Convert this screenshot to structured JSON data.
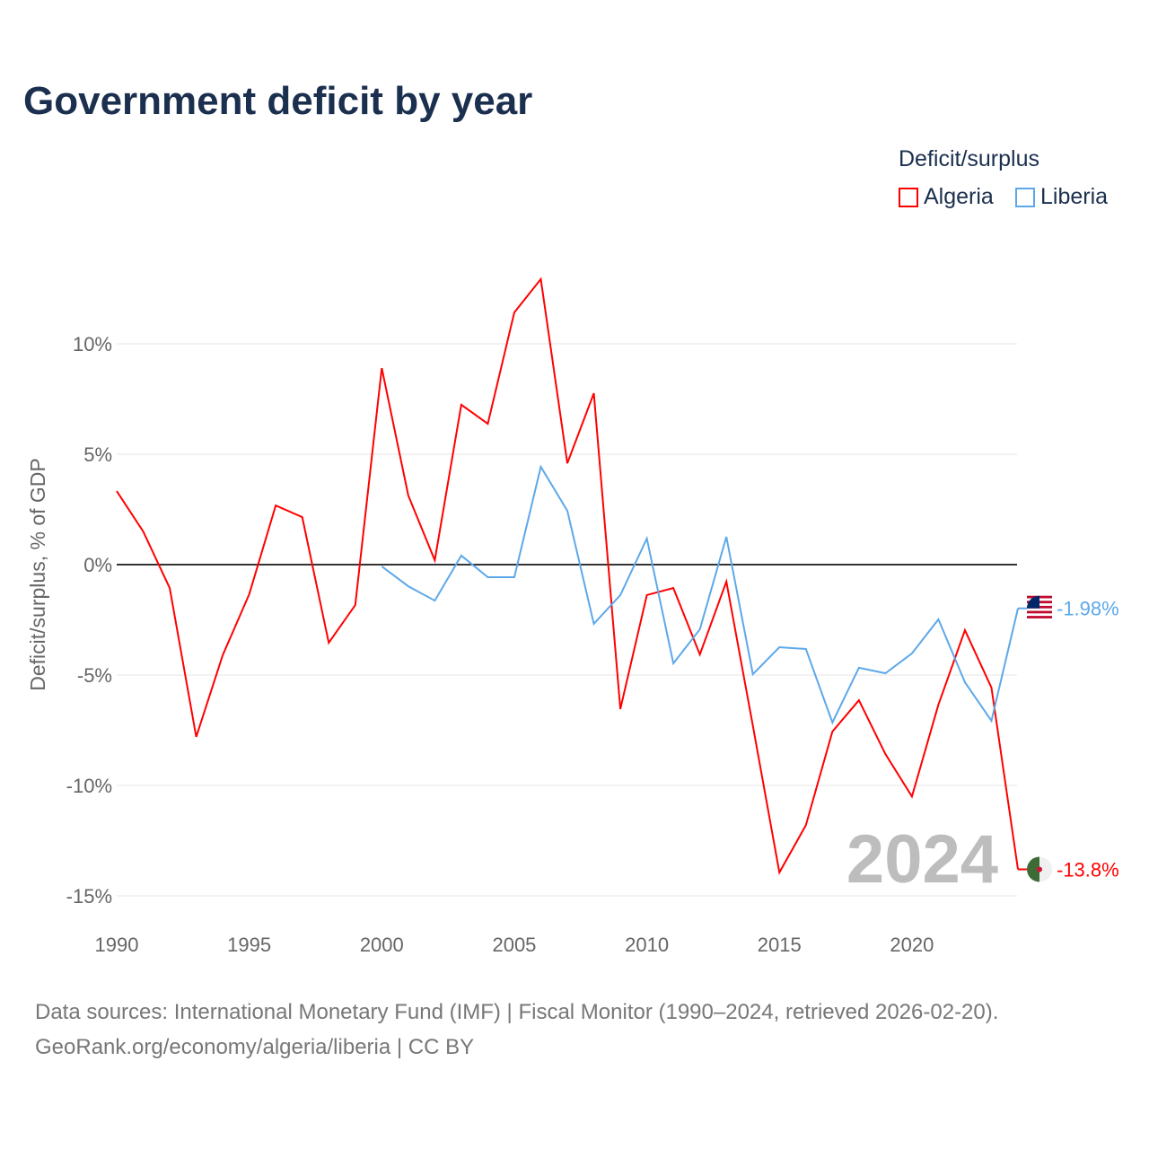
{
  "chart_data": {
    "type": "line",
    "title": "Government deficit by year",
    "ylabel": "Deficit/surplus, % of GDP",
    "xlabel": "",
    "xlim": [
      1990,
      2024
    ],
    "ylim": [
      -15,
      13
    ],
    "x_ticks": [
      1990,
      1995,
      2000,
      2005,
      2010,
      2015,
      2020
    ],
    "y_ticks": [
      10,
      5,
      0,
      -5,
      -10,
      -15
    ],
    "y_tick_labels": [
      "10%",
      "5%",
      "0%",
      "-5%",
      "-10%",
      "-15%"
    ],
    "legend_title": "Deficit/surplus",
    "legend_position": "top-right",
    "watermark_year": "2024",
    "series": [
      {
        "name": "Algeria",
        "color": "#ff0000",
        "end_label": "-13.8%",
        "start_year": 1990,
        "values": [
          3.33,
          1.5,
          -1.06,
          -7.8,
          -4.1,
          -1.34,
          2.68,
          2.15,
          -3.54,
          -1.83,
          8.9,
          3.13,
          0.2,
          7.24,
          6.38,
          11.42,
          12.93,
          4.59,
          7.76,
          -6.54,
          -1.38,
          -1.06,
          -4.07,
          -0.77,
          -7.3,
          -13.94,
          -11.8,
          -7.56,
          -6.14,
          -8.58,
          -10.5,
          -6.34,
          -2.97,
          -5.57,
          -13.8
        ]
      },
      {
        "name": "Liberia",
        "color": "#5da8ea",
        "end_label": "-1.98%",
        "start_year": 2000,
        "values": [
          -0.08,
          -0.98,
          -1.63,
          0.41,
          -0.57,
          -0.57,
          4.43,
          2.44,
          -2.68,
          -1.38,
          1.18,
          -4.47,
          -2.93,
          1.26,
          -4.96,
          -3.74,
          -3.82,
          -7.15,
          -4.67,
          -4.92,
          -4.02,
          -2.48,
          -5.33,
          -7.07,
          -1.98
        ]
      }
    ]
  },
  "source_line1": "Data sources: International Monetary Fund (IMF) | Fiscal Monitor (1990–2024, retrieved 2026-02-20).",
  "source_line2": "GeoRank.org/economy/algeria/liberia | CC BY"
}
